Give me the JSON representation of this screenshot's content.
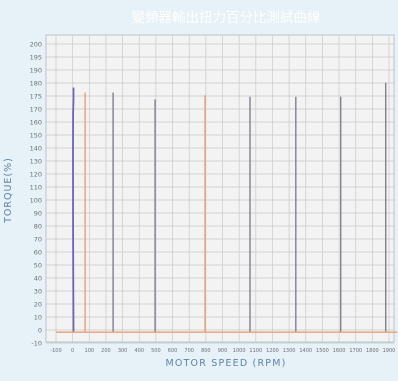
{
  "chart_data": {
    "type": "line",
    "title": "變頻器輸出扭力百分比測試曲線",
    "xlabel": "MOTOR SPEED (RPM)",
    "ylabel": "TORQUE(%)",
    "y_ticks": [
      200,
      195,
      190,
      180,
      175,
      170,
      160,
      150,
      140,
      130,
      120,
      110,
      100,
      90,
      80,
      70,
      60,
      50,
      40,
      30,
      20,
      10,
      0,
      -10
    ],
    "x_tick_labels": [
      "-100",
      "0",
      "100",
      "200",
      "300",
      "400",
      "500",
      "600",
      "700",
      "800",
      "900",
      "1000",
      "1100",
      "1200",
      "1300",
      "1400",
      "1500",
      "1600",
      "1700",
      "1800",
      "1900"
    ],
    "ylim": [
      -10,
      200
    ],
    "grid": true,
    "colors": {
      "background": "#e6f1f8",
      "plot": "#f3f3f3",
      "grid": "#c9c9c9",
      "title": "#ffffff",
      "axis_label": "#5b85a8",
      "tick": "#6f6f6f",
      "curve_blue": "#6c64b6",
      "curve_orange": "#e7a070",
      "curve_gray": "#7d8290"
    },
    "series": [
      {
        "style": "blue",
        "x": [
          5,
          3,
          2,
          3,
          5,
          5,
          5,
          5
        ],
        "y": [
          -8,
          60,
          120,
          150,
          160,
          166,
          168,
          165
        ]
      },
      {
        "style": "orange",
        "x": [
          75,
          75,
          75,
          75
        ],
        "y": [
          -8,
          60,
          120,
          165
        ]
      },
      {
        "style": "gray",
        "x": [
          243,
          243,
          243
        ],
        "y": [
          -8,
          80,
          165
        ]
      },
      {
        "style": "gray",
        "x": [
          495,
          495,
          495
        ],
        "y": [
          -8,
          80,
          160
        ]
      },
      {
        "style": "orange",
        "x": [
          795,
          795,
          795
        ],
        "y": [
          -8,
          80,
          163
        ]
      },
      {
        "style": "gray",
        "x": [
          1065,
          1065,
          1065
        ],
        "y": [
          -8,
          80,
          162
        ]
      },
      {
        "style": "gray",
        "x": [
          1340,
          1340,
          1340
        ],
        "y": [
          -8,
          80,
          162
        ]
      },
      {
        "style": "gray",
        "x": [
          1610,
          1610,
          1610
        ],
        "y": [
          -8,
          80,
          162
        ]
      },
      {
        "style": "gray",
        "x": [
          1880,
          1880,
          1880
        ],
        "y": [
          -8,
          80,
          172
        ]
      },
      {
        "style": "orange",
        "x": [
          -100,
          500,
          1000,
          1600,
          1950
        ],
        "y": [
          -8,
          -8,
          -8,
          -8,
          -8
        ]
      }
    ]
  }
}
